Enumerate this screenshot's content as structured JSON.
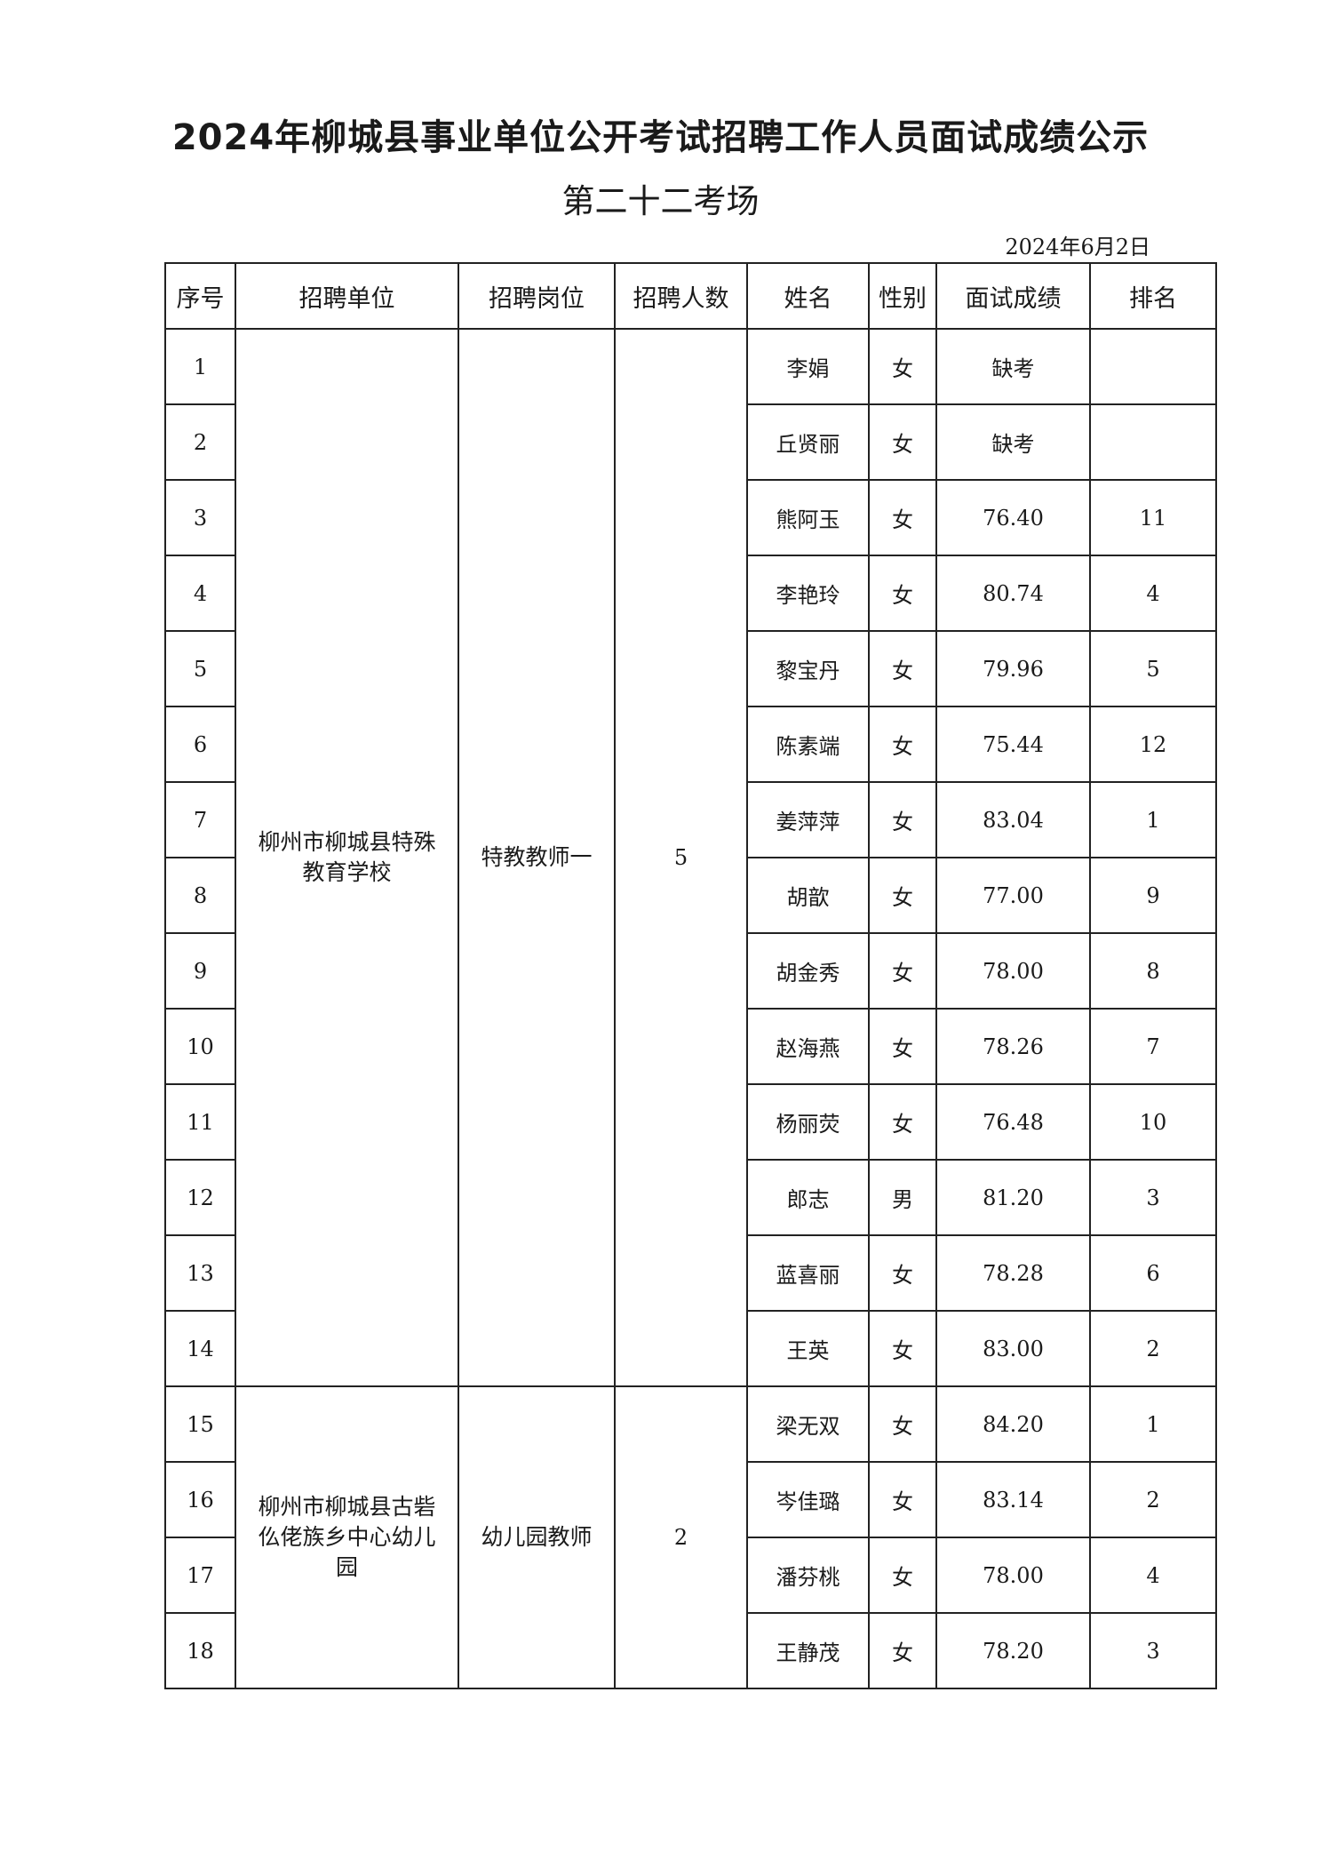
{
  "document": {
    "title": "2024年柳城县事业单位公开考试招聘工作人员面试成绩公示",
    "subtitle": "第二十二考场",
    "date": "2024年6月2日"
  },
  "table": {
    "headers": [
      "序号",
      "招聘单位",
      "招聘岗位",
      "招聘人数",
      "姓名",
      "性别",
      "面试成绩",
      "排名"
    ],
    "groups": [
      {
        "unit": "柳州市柳城县特殊教育学校",
        "position": "特教教师一",
        "count": "5"
      },
      {
        "unit": "柳州市柳城县古砦仫佬族乡中心幼儿园",
        "position": "幼儿园教师",
        "count": "2"
      }
    ],
    "rows": [
      {
        "no": "1",
        "name": "李娟",
        "gender": "女",
        "score": "缺考",
        "rank": ""
      },
      {
        "no": "2",
        "name": "丘贤丽",
        "gender": "女",
        "score": "缺考",
        "rank": ""
      },
      {
        "no": "3",
        "name": "熊阿玉",
        "gender": "女",
        "score": "76.40",
        "rank": "11"
      },
      {
        "no": "4",
        "name": "李艳玲",
        "gender": "女",
        "score": "80.74",
        "rank": "4"
      },
      {
        "no": "5",
        "name": "黎宝丹",
        "gender": "女",
        "score": "79.96",
        "rank": "5"
      },
      {
        "no": "6",
        "name": "陈素端",
        "gender": "女",
        "score": "75.44",
        "rank": "12"
      },
      {
        "no": "7",
        "name": "姜萍萍",
        "gender": "女",
        "score": "83.04",
        "rank": "1"
      },
      {
        "no": "8",
        "name": "胡歆",
        "gender": "女",
        "score": "77.00",
        "rank": "9"
      },
      {
        "no": "9",
        "name": "胡金秀",
        "gender": "女",
        "score": "78.00",
        "rank": "8"
      },
      {
        "no": "10",
        "name": "赵海燕",
        "gender": "女",
        "score": "78.26",
        "rank": "7"
      },
      {
        "no": "11",
        "name": "杨丽荧",
        "gender": "女",
        "score": "76.48",
        "rank": "10"
      },
      {
        "no": "12",
        "name": "郎志",
        "gender": "男",
        "score": "81.20",
        "rank": "3"
      },
      {
        "no": "13",
        "name": "蓝喜丽",
        "gender": "女",
        "score": "78.28",
        "rank": "6"
      },
      {
        "no": "14",
        "name": "王英",
        "gender": "女",
        "score": "83.00",
        "rank": "2"
      },
      {
        "no": "15",
        "name": "梁无双",
        "gender": "女",
        "score": "84.20",
        "rank": "1"
      },
      {
        "no": "16",
        "name": "岑佳璐",
        "gender": "女",
        "score": "83.14",
        "rank": "2"
      },
      {
        "no": "17",
        "name": "潘芬桃",
        "gender": "女",
        "score": "78.00",
        "rank": "4"
      },
      {
        "no": "18",
        "name": "王静茂",
        "gender": "女",
        "score": "78.20",
        "rank": "3"
      }
    ]
  }
}
